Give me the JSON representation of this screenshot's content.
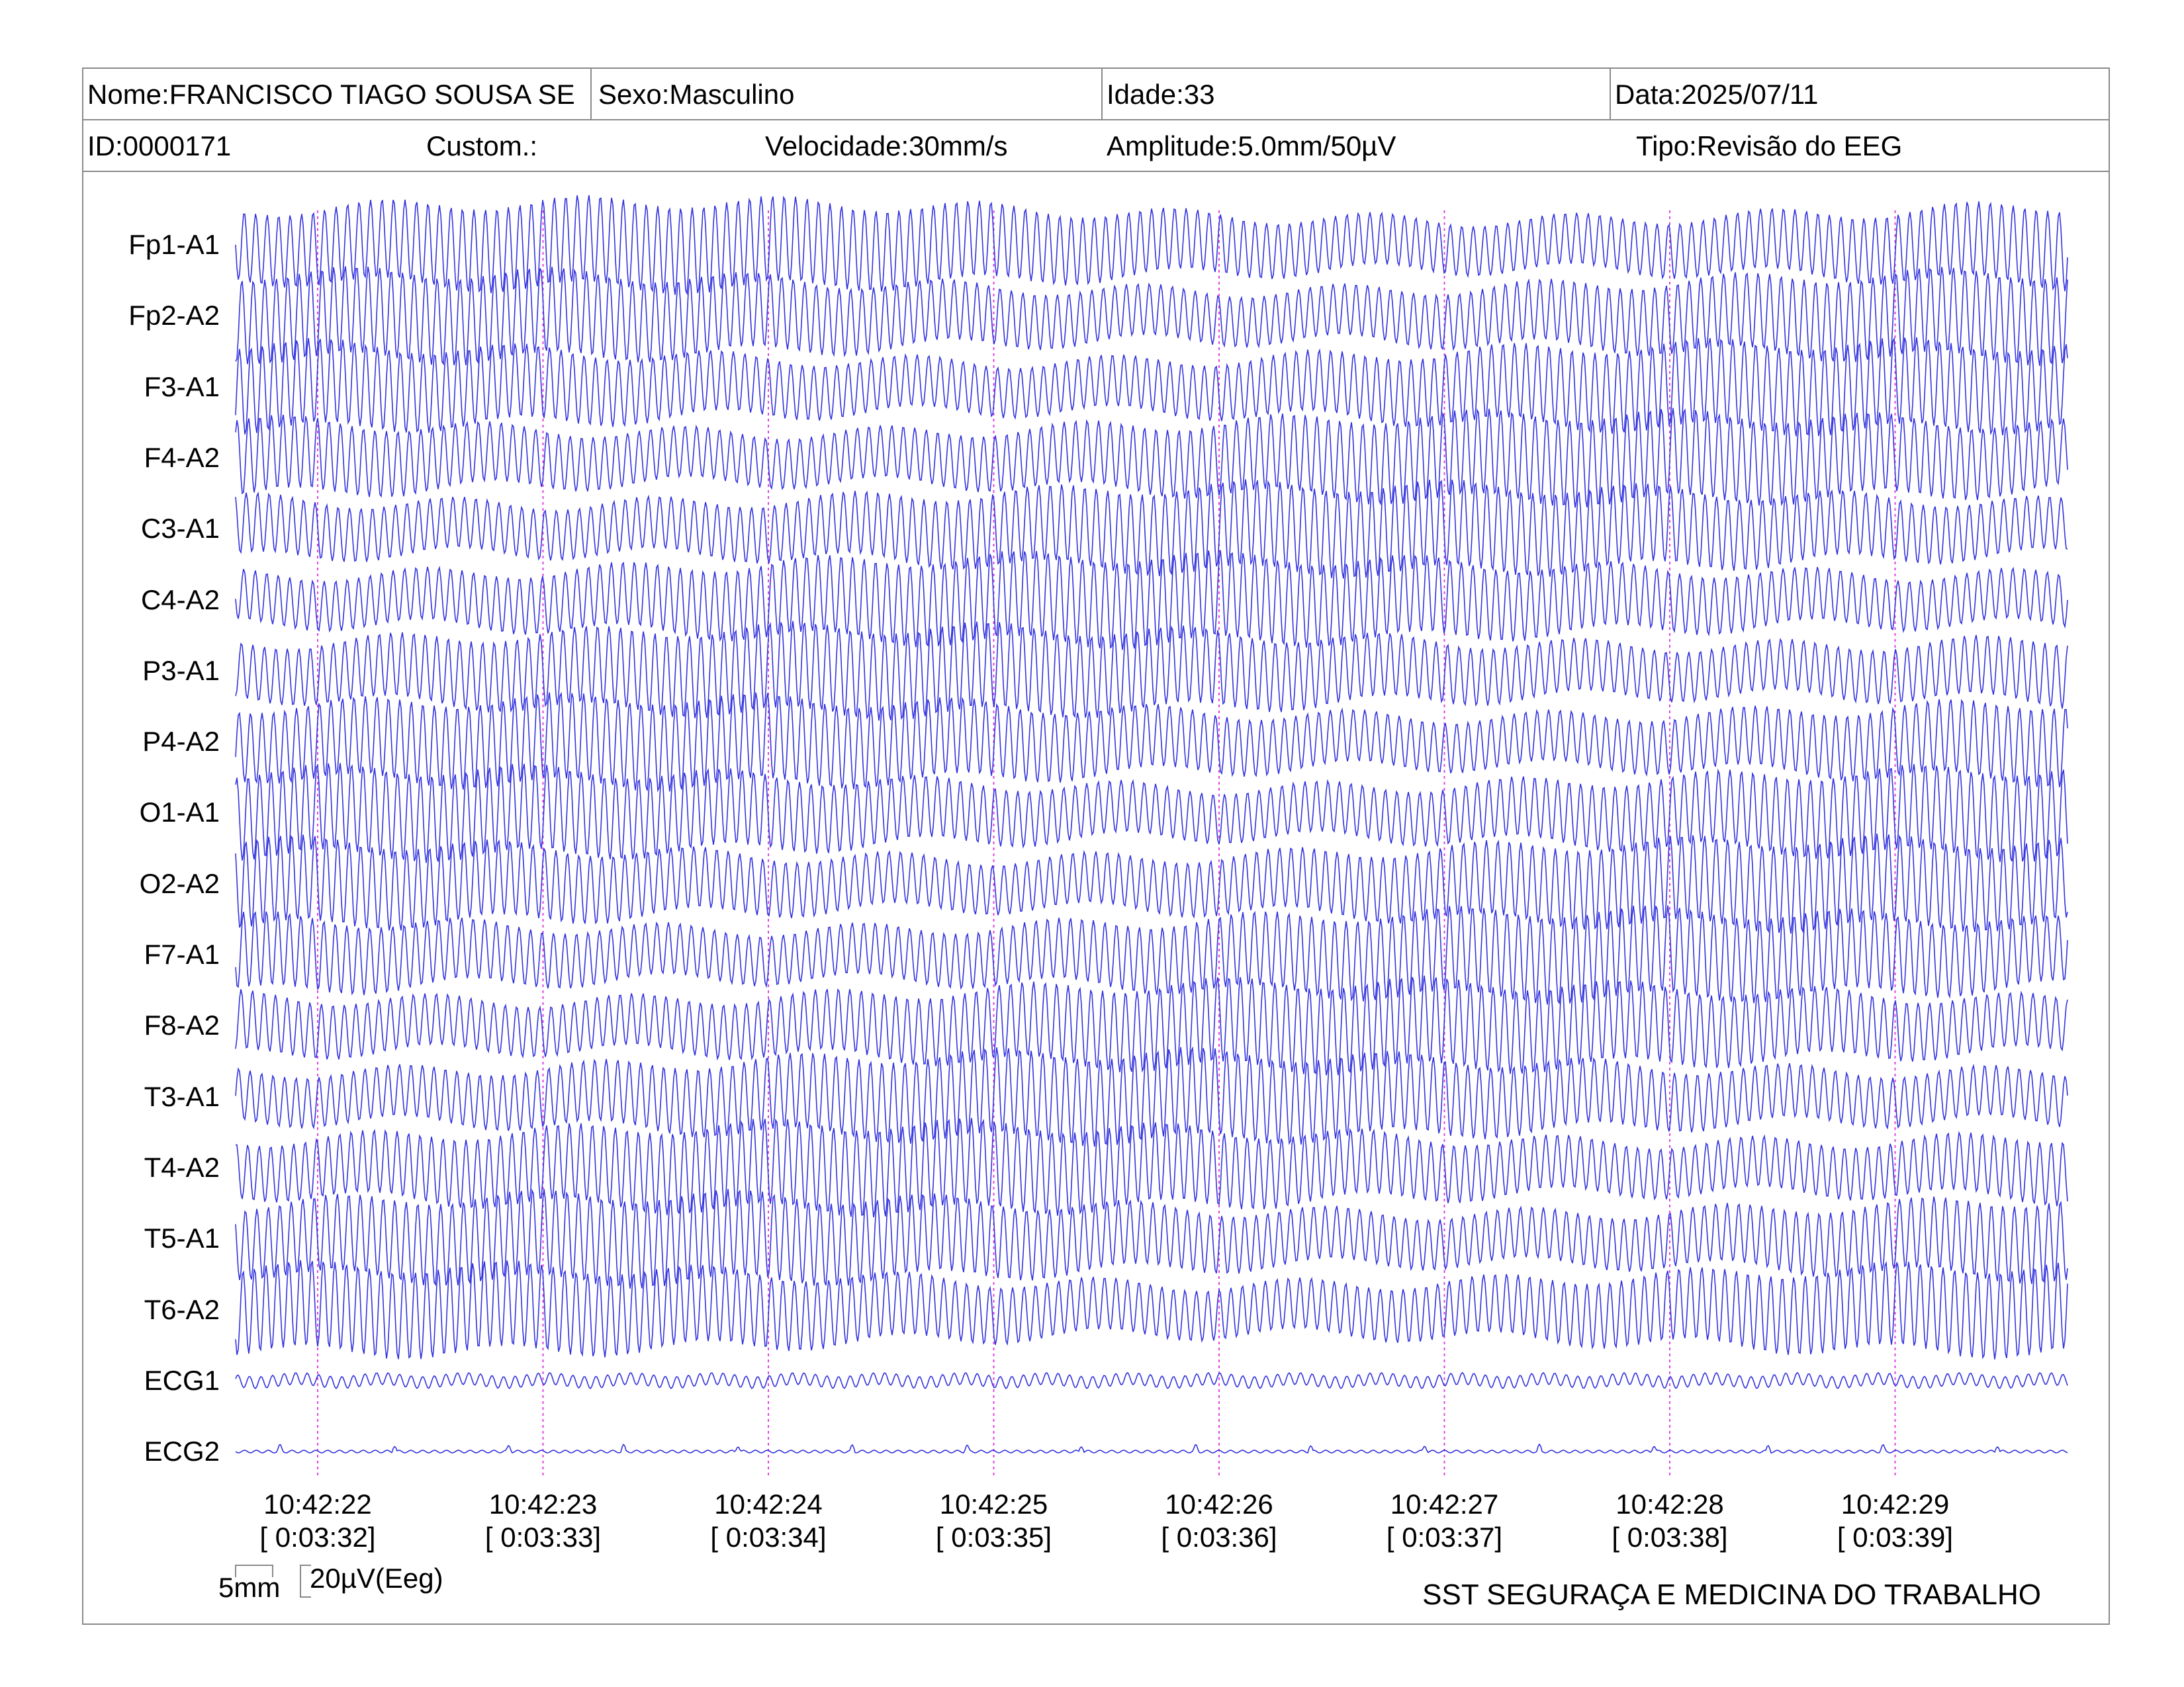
{
  "header": {
    "name": "Nome:FRANCISCO TIAGO SOUSA SE",
    "sex": "Sexo:Masculino",
    "age": "Idade:33",
    "date": "Data:2025/07/11",
    "id": "ID:0000171",
    "custom": "Custom.:",
    "speed": "Velocidade:30mm/s",
    "amplitude": "Amplitude:5.0mm/50µV",
    "type": "Tipo:Revisão do EEG"
  },
  "scale": {
    "length_label": "5mm",
    "amplitude_label": "20µV(Eeg)"
  },
  "footer": {
    "organization": "SST SEGURAÇA E MEDICINA DO TRABALHO"
  },
  "colors": {
    "trace": "#3333dd",
    "time_marker": "#e040e0",
    "border": "#8a8a8a"
  },
  "chart_data": {
    "type": "line",
    "channels": [
      "Fp1-A1",
      "Fp2-A2",
      "F3-A1",
      "F4-A2",
      "C3-A1",
      "C4-A2",
      "P3-A1",
      "P4-A2",
      "O1-A1",
      "O2-A2",
      "F7-A1",
      "F8-A2",
      "T3-A1",
      "T4-A2",
      "T5-A1",
      "T6-A2",
      "ECG1",
      "ECG2"
    ],
    "time_labels": [
      "10:42:22",
      "10:42:23",
      "10:42:24",
      "10:42:25",
      "10:42:26",
      "10:42:27",
      "10:42:28",
      "10:42:29"
    ],
    "elapsed_labels": [
      "[ 0:03:32]",
      "[ 0:03:33]",
      "[ 0:03:34]",
      "[ 0:03:35]",
      "[ 0:03:36]",
      "[ 0:03:37]",
      "[ 0:03:38]",
      "[ 0:03:39]"
    ],
    "grid": false
  }
}
